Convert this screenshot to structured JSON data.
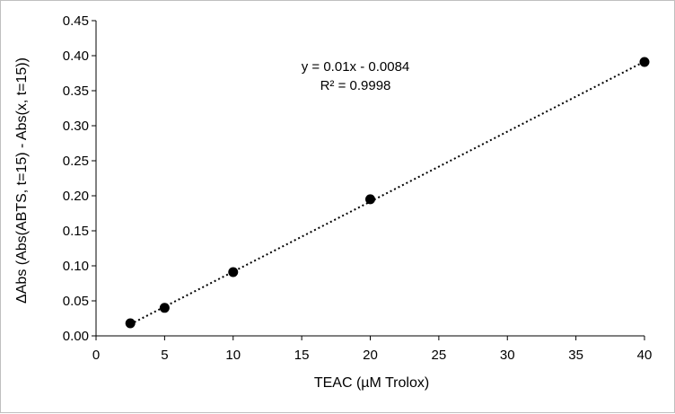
{
  "chart_data": {
    "type": "scatter",
    "xlabel": "TEAC (µM Trolox)",
    "ylabel": "ΔAbs (Abs(ABTS, t=15) - Abs(x, t=15))",
    "xlim": [
      0,
      40
    ],
    "ylim": [
      0,
      0.45
    ],
    "x_ticks": [
      "0",
      "5",
      "10",
      "15",
      "20",
      "25",
      "30",
      "35",
      "40"
    ],
    "y_ticks": [
      "0.00",
      "0.05",
      "0.10",
      "0.15",
      "0.20",
      "0.25",
      "0.30",
      "0.35",
      "0.40",
      "0.45"
    ],
    "grid": false,
    "legend": "none",
    "series": [
      {
        "x": [
          2.5,
          5,
          10,
          20,
          40
        ],
        "y": [
          0.018,
          0.04,
          0.091,
          0.195,
          0.391
        ],
        "color": "#000000",
        "marker": "circle"
      }
    ],
    "trendline": {
      "style": "dotted",
      "color": "#000000",
      "slope": 0.01,
      "intercept": -0.0084,
      "x_range": [
        2.5,
        40
      ]
    },
    "annotations": {
      "equation": "y = 0.01x - 0.0084",
      "r_squared": "R² = 0.9998"
    }
  }
}
